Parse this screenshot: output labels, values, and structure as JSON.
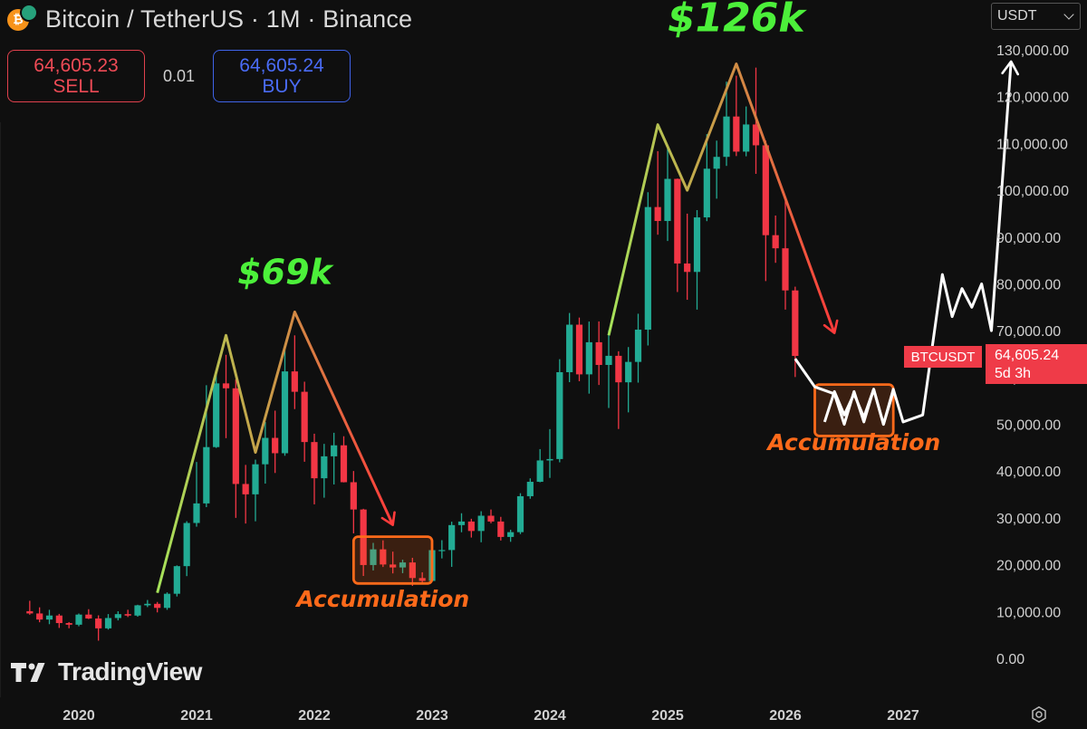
{
  "header": {
    "title": "Bitcoin / TetherUS · 1M · Binance",
    "icons": [
      "bitcoin-icon",
      "tether-icon"
    ]
  },
  "trade": {
    "sell_price": "64,605.23",
    "sell_label": "SELL",
    "spread": "0.01",
    "buy_price": "64,605.24",
    "buy_label": "BUY"
  },
  "currency": {
    "selected": "USDT"
  },
  "price_tag": {
    "symbol": "BTCUSDT",
    "price": "64,605.24",
    "countdown": "5d 3h"
  },
  "brand": {
    "name": "TradingView"
  },
  "colors": {
    "up": "#22ab94",
    "down": "#f23645",
    "green_text": "#4cf03a",
    "orange": "#ff6a1a",
    "background": "#0f0f0f"
  },
  "chart_data": {
    "type": "candlestick",
    "interval": "1M",
    "y_axis": {
      "ticks": [
        0,
        10000,
        20000,
        30000,
        40000,
        50000,
        60000,
        70000,
        80000,
        90000,
        100000,
        110000,
        120000,
        130000
      ],
      "tick_labels": [
        "0.00",
        "10,000.00",
        "20,000.00",
        "30,000.00",
        "40,000.00",
        "50,000.00",
        "60,000.00",
        "70,000.00",
        "80,000.00",
        "90,000.00",
        "100,000.00",
        "110,000.00",
        "120,000.00",
        "130,000.00"
      ],
      "ylim": [
        -3000,
        133000
      ],
      "side": "right"
    },
    "x_axis": {
      "tick_labels": [
        "2020",
        "2021",
        "2022",
        "2023",
        "2024",
        "2025",
        "2026",
        "2027"
      ],
      "xlim": [
        "2019-07",
        "2027-12"
      ]
    },
    "candles": [
      {
        "t": "2019-08",
        "o": 10080,
        "h": 12300,
        "l": 9320,
        "c": 9590
      },
      {
        "t": "2019-09",
        "o": 9590,
        "h": 10900,
        "l": 7710,
        "c": 8290
      },
      {
        "t": "2019-10",
        "o": 8290,
        "h": 10370,
        "l": 7300,
        "c": 9150
      },
      {
        "t": "2019-11",
        "o": 9150,
        "h": 9500,
        "l": 6500,
        "c": 7540
      },
      {
        "t": "2019-12",
        "o": 7540,
        "h": 7750,
        "l": 6430,
        "c": 7190
      },
      {
        "t": "2020-01",
        "o": 7190,
        "h": 9580,
        "l": 6850,
        "c": 9350
      },
      {
        "t": "2020-02",
        "o": 9350,
        "h": 10500,
        "l": 8400,
        "c": 8520
      },
      {
        "t": "2020-03",
        "o": 8520,
        "h": 9190,
        "l": 3780,
        "c": 6410
      },
      {
        "t": "2020-04",
        "o": 6410,
        "h": 9460,
        "l": 6150,
        "c": 8620
      },
      {
        "t": "2020-05",
        "o": 8620,
        "h": 10060,
        "l": 8110,
        "c": 9450
      },
      {
        "t": "2020-06",
        "o": 9450,
        "h": 10380,
        "l": 8830,
        "c": 9140
      },
      {
        "t": "2020-07",
        "o": 9140,
        "h": 11450,
        "l": 8900,
        "c": 11330
      },
      {
        "t": "2020-08",
        "o": 11330,
        "h": 12470,
        "l": 10950,
        "c": 11650
      },
      {
        "t": "2020-09",
        "o": 11650,
        "h": 12050,
        "l": 9820,
        "c": 10780
      },
      {
        "t": "2020-10",
        "o": 10780,
        "h": 14100,
        "l": 10370,
        "c": 13800
      },
      {
        "t": "2020-11",
        "o": 13800,
        "h": 19860,
        "l": 13220,
        "c": 19700
      },
      {
        "t": "2020-12",
        "o": 19700,
        "h": 29300,
        "l": 17570,
        "c": 28920
      },
      {
        "t": "2021-01",
        "o": 28920,
        "h": 41950,
        "l": 28130,
        "c": 33100
      },
      {
        "t": "2021-02",
        "o": 33100,
        "h": 58350,
        "l": 32300,
        "c": 45130
      },
      {
        "t": "2021-03",
        "o": 45130,
        "h": 61780,
        "l": 44950,
        "c": 58740
      },
      {
        "t": "2021-04",
        "o": 58740,
        "h": 64850,
        "l": 47040,
        "c": 57690
      },
      {
        "t": "2021-05",
        "o": 57690,
        "h": 59600,
        "l": 30000,
        "c": 37250
      },
      {
        "t": "2021-06",
        "o": 37250,
        "h": 41330,
        "l": 28800,
        "c": 35040
      },
      {
        "t": "2021-07",
        "o": 35040,
        "h": 42450,
        "l": 29280,
        "c": 41460
      },
      {
        "t": "2021-08",
        "o": 41460,
        "h": 50500,
        "l": 37330,
        "c": 47100
      },
      {
        "t": "2021-09",
        "o": 47100,
        "h": 52920,
        "l": 39600,
        "c": 43820
      },
      {
        "t": "2021-10",
        "o": 43820,
        "h": 67000,
        "l": 43280,
        "c": 61300
      },
      {
        "t": "2021-11",
        "o": 61300,
        "h": 69000,
        "l": 53250,
        "c": 56950
      },
      {
        "t": "2021-12",
        "o": 56950,
        "h": 59100,
        "l": 42000,
        "c": 46210
      },
      {
        "t": "2022-01",
        "o": 46210,
        "h": 47990,
        "l": 32900,
        "c": 38470
      },
      {
        "t": "2022-02",
        "o": 38470,
        "h": 45820,
        "l": 34320,
        "c": 43160
      },
      {
        "t": "2022-03",
        "o": 43160,
        "h": 48190,
        "l": 37150,
        "c": 45510
      },
      {
        "t": "2022-04",
        "o": 45510,
        "h": 47450,
        "l": 37580,
        "c": 37630
      },
      {
        "t": "2022-05",
        "o": 37630,
        "h": 40020,
        "l": 26700,
        "c": 31800
      },
      {
        "t": "2022-06",
        "o": 31800,
        "h": 31950,
        "l": 17600,
        "c": 19940
      },
      {
        "t": "2022-07",
        "o": 19940,
        "h": 24670,
        "l": 18780,
        "c": 23290
      },
      {
        "t": "2022-08",
        "o": 23290,
        "h": 25210,
        "l": 19520,
        "c": 20050
      },
      {
        "t": "2022-09",
        "o": 20050,
        "h": 22800,
        "l": 18150,
        "c": 19420
      },
      {
        "t": "2022-10",
        "o": 19420,
        "h": 21080,
        "l": 18200,
        "c": 20490
      },
      {
        "t": "2022-11",
        "o": 20490,
        "h": 21480,
        "l": 15480,
        "c": 17160
      },
      {
        "t": "2022-12",
        "o": 17160,
        "h": 18390,
        "l": 16260,
        "c": 16540
      },
      {
        "t": "2023-01",
        "o": 16540,
        "h": 23960,
        "l": 16500,
        "c": 23120
      },
      {
        "t": "2023-02",
        "o": 23120,
        "h": 25250,
        "l": 21350,
        "c": 23140
      },
      {
        "t": "2023-03",
        "o": 23140,
        "h": 29200,
        "l": 19550,
        "c": 28470
      },
      {
        "t": "2023-04",
        "o": 28470,
        "h": 31000,
        "l": 26940,
        "c": 29230
      },
      {
        "t": "2023-05",
        "o": 29230,
        "h": 29820,
        "l": 25810,
        "c": 27210
      },
      {
        "t": "2023-06",
        "o": 27210,
        "h": 31430,
        "l": 24800,
        "c": 30470
      },
      {
        "t": "2023-07",
        "o": 30470,
        "h": 31800,
        "l": 28860,
        "c": 29230
      },
      {
        "t": "2023-08",
        "o": 29230,
        "h": 30230,
        "l": 25170,
        "c": 25940
      },
      {
        "t": "2023-09",
        "o": 25940,
        "h": 27480,
        "l": 24900,
        "c": 26960
      },
      {
        "t": "2023-10",
        "o": 26960,
        "h": 35280,
        "l": 26550,
        "c": 34640
      },
      {
        "t": "2023-11",
        "o": 34640,
        "h": 38450,
        "l": 34100,
        "c": 37720
      },
      {
        "t": "2023-12",
        "o": 37720,
        "h": 44700,
        "l": 37620,
        "c": 42280
      },
      {
        "t": "2024-01",
        "o": 42280,
        "h": 48970,
        "l": 38550,
        "c": 42580
      },
      {
        "t": "2024-02",
        "o": 42580,
        "h": 63910,
        "l": 41880,
        "c": 61130
      },
      {
        "t": "2024-03",
        "o": 61130,
        "h": 73780,
        "l": 59000,
        "c": 71280
      },
      {
        "t": "2024-04",
        "o": 71280,
        "h": 72800,
        "l": 59200,
        "c": 60670
      },
      {
        "t": "2024-05",
        "o": 60670,
        "h": 71950,
        "l": 56550,
        "c": 67530
      },
      {
        "t": "2024-06",
        "o": 67530,
        "h": 71980,
        "l": 58400,
        "c": 62680
      },
      {
        "t": "2024-07",
        "o": 62680,
        "h": 70080,
        "l": 53480,
        "c": 64630
      },
      {
        "t": "2024-08",
        "o": 64630,
        "h": 65600,
        "l": 49000,
        "c": 58970
      },
      {
        "t": "2024-09",
        "o": 58970,
        "h": 66500,
        "l": 52550,
        "c": 63330
      },
      {
        "t": "2024-10",
        "o": 63330,
        "h": 73620,
        "l": 58900,
        "c": 70220
      },
      {
        "t": "2024-11",
        "o": 70220,
        "h": 99590,
        "l": 66830,
        "c": 96410
      },
      {
        "t": "2024-12",
        "o": 96410,
        "h": 108350,
        "l": 90500,
        "c": 93430
      },
      {
        "t": "2025-01",
        "o": 93430,
        "h": 109590,
        "l": 89160,
        "c": 102430
      },
      {
        "t": "2025-02",
        "o": 102430,
        "h": 102500,
        "l": 78260,
        "c": 84350
      },
      {
        "t": "2025-03",
        "o": 84350,
        "h": 95000,
        "l": 76600,
        "c": 82550
      },
      {
        "t": "2025-04",
        "o": 82550,
        "h": 95760,
        "l": 74500,
        "c": 94200
      },
      {
        "t": "2025-05",
        "o": 94200,
        "h": 111980,
        "l": 93400,
        "c": 104600
      },
      {
        "t": "2025-06",
        "o": 104600,
        "h": 110600,
        "l": 98200,
        "c": 107130
      },
      {
        "t": "2025-07",
        "o": 107130,
        "h": 123200,
        "l": 105200,
        "c": 115750
      },
      {
        "t": "2025-08",
        "o": 115750,
        "h": 124470,
        "l": 107300,
        "c": 108250
      },
      {
        "t": "2025-09",
        "o": 108250,
        "h": 117900,
        "l": 107250,
        "c": 114050
      },
      {
        "t": "2025-10",
        "o": 114050,
        "h": 126200,
        "l": 103500,
        "c": 109600
      },
      {
        "t": "2025-11",
        "o": 109600,
        "h": 110600,
        "l": 80600,
        "c": 90400
      },
      {
        "t": "2025-12",
        "o": 90400,
        "h": 94600,
        "l": 84500,
        "c": 87600
      },
      {
        "t": "2026-01",
        "o": 87600,
        "h": 97900,
        "l": 74500,
        "c": 78600
      },
      {
        "t": "2026-02",
        "o": 78600,
        "h": 79400,
        "l": 60100,
        "c": 64605
      }
    ],
    "annotations": [
      {
        "kind": "text",
        "text": "$69k",
        "at": [
          "2021-10",
          80000
        ],
        "color": "#4cf03a"
      },
      {
        "kind": "text",
        "text": "$126k",
        "at": [
          "2025-08",
          134000
        ],
        "color": "#4cf03a"
      },
      {
        "kind": "text",
        "text": "Accumulation",
        "at": [
          "2022-08",
          11000
        ],
        "color": "#ff6a1a"
      },
      {
        "kind": "text",
        "text": "Accumulation",
        "at": [
          "2026-08",
          44500
        ],
        "color": "#ff6a1a"
      },
      {
        "kind": "box",
        "from": [
          "2022-05",
          26000
        ],
        "to": [
          "2023-01",
          16000
        ],
        "color": "#ff6a1a"
      },
      {
        "kind": "box",
        "from": [
          "2026-04",
          58500
        ],
        "to": [
          "2026-12",
          47500
        ],
        "color": "#ff6a1a"
      },
      {
        "kind": "path",
        "name": "cycle-2021",
        "gradient": [
          "#a6e35a",
          "#ff3b3b"
        ],
        "points": [
          [
            "2020-09",
            14000
          ],
          [
            "2021-04",
            69000
          ],
          [
            "2021-07",
            44000
          ],
          [
            "2021-11",
            74000
          ],
          [
            "2022-09",
            28500
          ]
        ],
        "arrow": "end"
      },
      {
        "kind": "path",
        "name": "cycle-2025",
        "gradient": [
          "#a6e35a",
          "#ff3b3b"
        ],
        "points": [
          [
            "2024-07",
            69000
          ],
          [
            "2024-12",
            114000
          ],
          [
            "2025-03",
            100000
          ],
          [
            "2025-08",
            127000
          ],
          [
            "2026-06",
            69500
          ]
        ],
        "arrow": "end"
      },
      {
        "kind": "path",
        "name": "projection",
        "color": "#ffffff",
        "points": [
          [
            "2026-02",
            64000
          ],
          [
            "2026-04",
            58000
          ],
          [
            "2026-06",
            56500
          ],
          [
            "2026-07",
            50000
          ],
          [
            "2026-08",
            57000
          ],
          [
            "2026-09",
            50500
          ],
          [
            "2026-10",
            57500
          ],
          [
            "2026-11",
            50000
          ],
          [
            "2026-12",
            57500
          ],
          [
            "2027-01",
            50500
          ],
          [
            "2027-03",
            52000
          ],
          [
            "2027-05",
            82000
          ],
          [
            "2027-06",
            73000
          ],
          [
            "2027-07",
            79000
          ],
          [
            "2027-08",
            75000
          ],
          [
            "2027-09",
            80000
          ],
          [
            "2027-10",
            70000
          ],
          [
            "2027-12",
            127500
          ]
        ],
        "arrow": "end"
      },
      {
        "kind": "path",
        "name": "projection-box-zigzag",
        "color": "#ffffff",
        "points": [
          [
            "2026-05",
            50500
          ],
          [
            "2026-06",
            57000
          ],
          [
            "2026-07",
            52000
          ],
          [
            "2026-08",
            56500
          ],
          [
            "2026-09",
            51500
          ],
          [
            "2026-10",
            57500
          ],
          [
            "2026-11",
            50000
          ],
          [
            "2026-12",
            57000
          ]
        ]
      }
    ]
  }
}
